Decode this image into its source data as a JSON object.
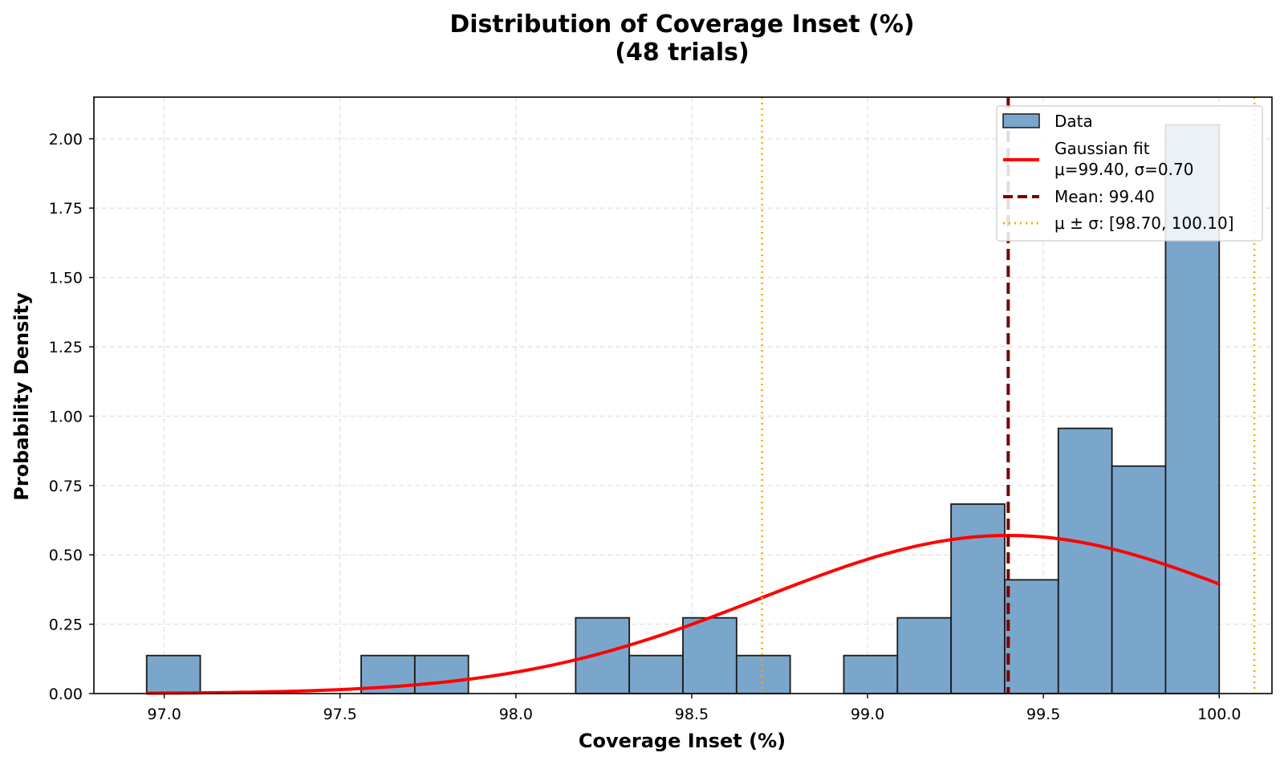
{
  "chart_data": {
    "type": "histogram",
    "title_line1": "Distribution of Coverage Inset (%)",
    "title_line2": "(48 trials)",
    "xlabel": "Coverage Inset (%)",
    "ylabel": "Probability Density",
    "xlim": [
      96.8,
      100.15
    ],
    "ylim": [
      0,
      2.15
    ],
    "xticks": [
      97.0,
      97.5,
      98.0,
      98.5,
      99.0,
      99.5,
      100.0
    ],
    "xtick_labels": [
      "97.0",
      "97.5",
      "98.0",
      "98.5",
      "99.0",
      "99.5",
      "100.0"
    ],
    "yticks": [
      0.0,
      0.25,
      0.5,
      0.75,
      1.0,
      1.25,
      1.5,
      1.75,
      2.0
    ],
    "ytick_labels": [
      "0.00",
      "0.25",
      "0.50",
      "0.75",
      "1.00",
      "1.25",
      "1.50",
      "1.75",
      "2.00"
    ],
    "grid": true,
    "legend_position": "top-right",
    "bins": {
      "edges": [
        96.95,
        97.1025,
        97.255,
        97.4075,
        97.56,
        97.7125,
        97.865,
        98.0175,
        98.17,
        98.3225,
        98.475,
        98.6275,
        98.78,
        98.9325,
        99.085,
        99.2375,
        99.39,
        99.5425,
        99.695,
        99.8475,
        100.0
      ],
      "densities": [
        0.137,
        0,
        0,
        0,
        0.137,
        0.137,
        0,
        0,
        0.273,
        0.137,
        0.273,
        0.137,
        0,
        0.137,
        0.273,
        0.683,
        0.41,
        0.956,
        0.82,
        2.05
      ]
    },
    "gaussian_fit": {
      "mu": 99.4,
      "sigma": 0.7,
      "x_range": [
        96.95,
        100.0
      ]
    },
    "mean": 99.4,
    "sigma_bounds": [
      98.7,
      100.1
    ],
    "legend": [
      {
        "label": "Data",
        "kind": "patch"
      },
      {
        "label": "Gaussian fit",
        "label_line2": "μ=99.40, σ=0.70",
        "kind": "solid"
      },
      {
        "label": "Mean: 99.40",
        "kind": "dashed"
      },
      {
        "label": "μ ± σ: [98.70, 100.10]",
        "kind": "dotted"
      }
    ],
    "colors": {
      "bar_fill": "#7BA6CB",
      "bar_edge": "#1a1a1a",
      "fit": "#FF0000",
      "mean": "#7A0000",
      "sigma": "#FFA500",
      "grid": "#cccccc"
    }
  }
}
